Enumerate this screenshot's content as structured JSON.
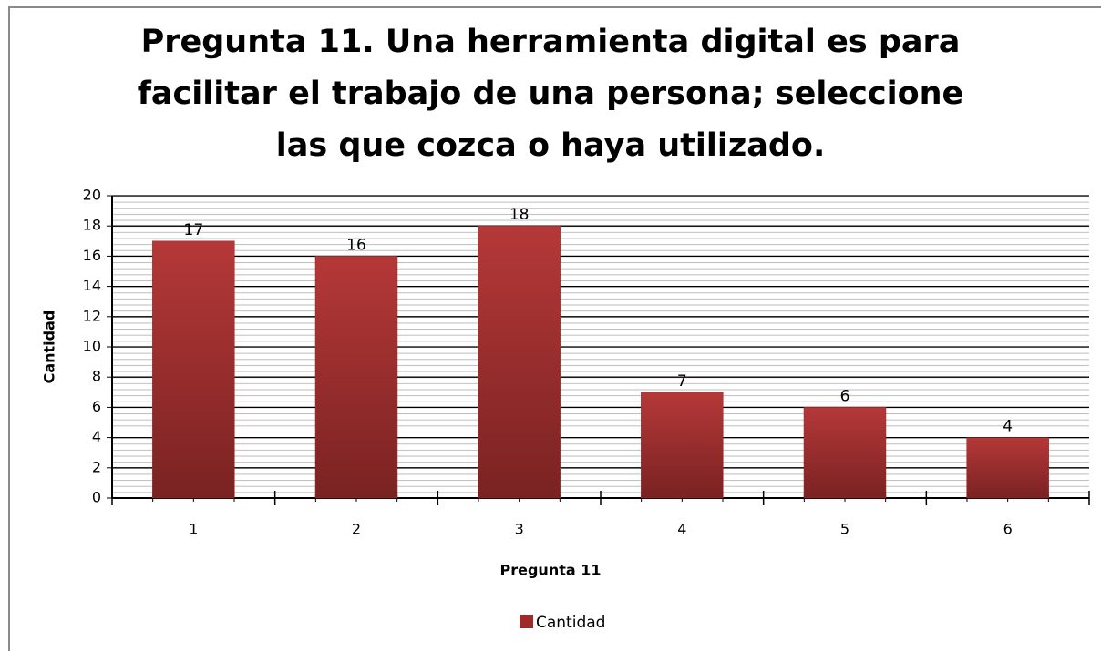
{
  "chart_data": {
    "type": "bar",
    "title": [
      "Pregunta 11. Una herramienta digital es para",
      "facilitar el trabajo de una persona; seleccione",
      "las que cozca o haya utilizado."
    ],
    "x_label": "Pregunta 11",
    "y_label": "Cantidad",
    "categories": [
      "1",
      "2",
      "3",
      "4",
      "5",
      "6"
    ],
    "series": [
      {
        "name": "Cantidad",
        "color": "#9e2b2b",
        "values": [
          17,
          16,
          18,
          7,
          6,
          4
        ]
      }
    ],
    "ylim": [
      0,
      20
    ],
    "yticks": [
      0,
      2,
      4,
      6,
      8,
      10,
      12,
      14,
      16,
      18,
      20
    ],
    "grid": true,
    "legend": "bottom"
  }
}
